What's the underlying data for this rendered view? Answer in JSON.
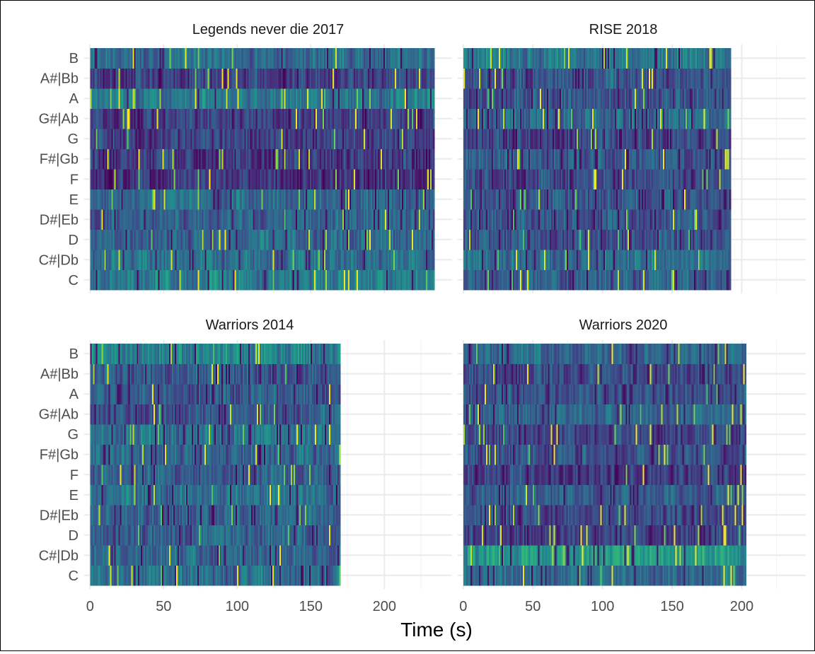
{
  "chart_data": {
    "type": "heatmap",
    "xlabel": "Time (s)",
    "ylabel": "",
    "xlim": [
      -4,
      246
    ],
    "x_ticks": [
      0,
      50,
      100,
      150,
      200
    ],
    "y_categories": [
      "C",
      "C#|Db",
      "D",
      "D#|Eb",
      "E",
      "F",
      "F#|Gb",
      "G",
      "G#|Ab",
      "A",
      "A#|Bb",
      "B"
    ],
    "value_range": [
      0,
      1
    ],
    "colormap": "viridis",
    "colormap_stops": [
      "#440154",
      "#482878",
      "#3e4a89",
      "#31688e",
      "#26828e",
      "#1f9e89",
      "#35b779",
      "#6ece58",
      "#b5de2b",
      "#fde725"
    ],
    "grid": true,
    "legend": "none",
    "panels": [
      {
        "title": "Legends never die 2017",
        "duration": 234,
        "mean_chroma": {
          "C": 0.42,
          "C#|Db": 0.36,
          "D": 0.32,
          "D#|Eb": 0.3,
          "E": 0.33,
          "F": 0.16,
          "F#|Gb": 0.18,
          "G": 0.2,
          "G#|Ab": 0.2,
          "A": 0.4,
          "A#|Bb": 0.2,
          "B": 0.34
        }
      },
      {
        "title": "RISE 2018",
        "duration": 192,
        "mean_chroma": {
          "C": 0.3,
          "C#|Db": 0.36,
          "D": 0.26,
          "D#|Eb": 0.28,
          "E": 0.26,
          "F": 0.22,
          "F#|Gb": 0.28,
          "G": 0.2,
          "G#|Ab": 0.34,
          "A": 0.26,
          "A#|Bb": 0.26,
          "B": 0.4
        }
      },
      {
        "title": "Warriors 2014",
        "duration": 170,
        "mean_chroma": {
          "C": 0.36,
          "C#|Db": 0.34,
          "D": 0.3,
          "D#|Eb": 0.32,
          "E": 0.38,
          "F": 0.3,
          "F#|Gb": 0.34,
          "G": 0.38,
          "G#|Ab": 0.26,
          "A": 0.28,
          "A#|Bb": 0.28,
          "B": 0.46
        }
      },
      {
        "title": "Warriors 2020",
        "duration": 203,
        "mean_chroma": {
          "C": 0.36,
          "C#|Db": 0.52,
          "D": 0.2,
          "D#|Eb": 0.22,
          "E": 0.3,
          "F": 0.18,
          "F#|Gb": 0.26,
          "G": 0.22,
          "G#|Ab": 0.32,
          "A": 0.26,
          "A#|Bb": 0.24,
          "B": 0.3
        }
      }
    ]
  }
}
